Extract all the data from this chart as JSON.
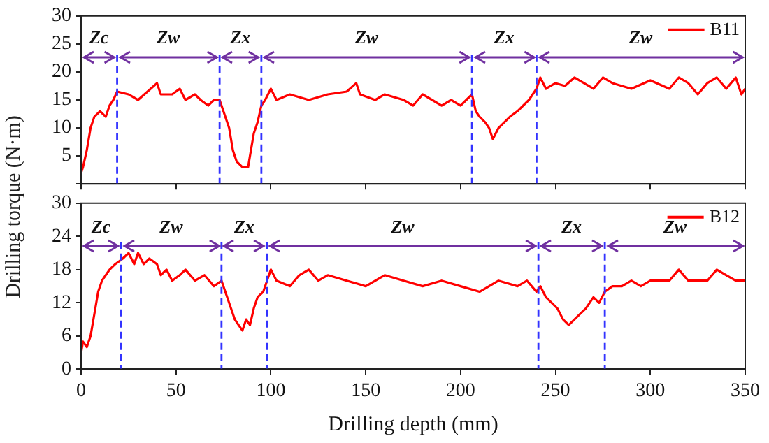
{
  "chart_data": [
    {
      "type": "line",
      "ylabel": "Drilling torque (N·m)",
      "xlim": [
        0,
        350
      ],
      "xticks": [
        0,
        50,
        100,
        150,
        200,
        250,
        300,
        350
      ],
      "ylim": [
        0,
        30
      ],
      "yticks": [
        {
          "value": 0,
          "label": null
        },
        5,
        10,
        15,
        20,
        25,
        30
      ],
      "tick_labels": "y",
      "grid": false,
      "legend": "top right",
      "line_style": "solid",
      "marker": "none",
      "series": [
        {
          "name": "B11",
          "color": "#ff0000",
          "x": [
            0,
            1,
            3,
            5,
            7,
            10,
            13,
            15,
            17,
            19,
            25,
            30,
            35,
            40,
            42,
            48,
            52,
            55,
            60,
            63,
            67,
            70,
            73,
            75,
            78,
            80,
            82,
            85,
            88,
            89,
            91,
            93,
            95,
            97,
            100,
            103,
            110,
            120,
            130,
            140,
            145,
            147,
            155,
            160,
            170,
            175,
            180,
            185,
            190,
            195,
            200,
            203,
            206,
            208,
            210,
            213,
            215,
            217,
            220,
            223,
            226,
            230,
            233,
            236,
            239,
            240,
            242,
            245,
            250,
            255,
            260,
            265,
            270,
            275,
            280,
            290,
            300,
            310,
            315,
            320,
            325,
            330,
            335,
            340,
            345,
            348,
            350
          ],
          "values": [
            2,
            3,
            6,
            10,
            12,
            13,
            12,
            14,
            15,
            16.5,
            16,
            15,
            16.5,
            18,
            16,
            16,
            17,
            15,
            16,
            15,
            14,
            15,
            15,
            13,
            10,
            6,
            4,
            3,
            3,
            5,
            9,
            11,
            14,
            15,
            17,
            15,
            16,
            15,
            16,
            16.5,
            18,
            16,
            15,
            16,
            15,
            14,
            16,
            15,
            14,
            15,
            14,
            15,
            16,
            13,
            12,
            11,
            10,
            8,
            10,
            11,
            12,
            13,
            14,
            15,
            16.5,
            17,
            19,
            17,
            18,
            17.5,
            19,
            18,
            17,
            19,
            18,
            17,
            18.5,
            17,
            19,
            18,
            16,
            18,
            19,
            17,
            19,
            16,
            17
          ]
        }
      ],
      "ref_lines": [
        {
          "axis": "x",
          "value": 19,
          "color": "#3333ff",
          "line_style": "dashed"
        },
        {
          "axis": "x",
          "value": 73,
          "color": "#3333ff",
          "line_style": "dashed"
        },
        {
          "axis": "x",
          "value": 95,
          "color": "#3333ff",
          "line_style": "dashed"
        },
        {
          "axis": "x",
          "value": 206,
          "color": "#3333ff",
          "line_style": "dashed"
        },
        {
          "axis": "x",
          "value": 240,
          "color": "#3333ff",
          "line_style": "dashed"
        }
      ],
      "annotations": [
        {
          "text": "Zc",
          "x": 19,
          "y": 22.7
        },
        {
          "text": "Zw",
          "x": 73,
          "y": 22.7
        },
        {
          "text": "Zx",
          "x": 95,
          "y": 22.7
        },
        "Zw",
        {
          "text": "Zx",
          "x": 240,
          "y": 22.7
        },
        "Zw"
      ]
    },
    {
      "type": "line",
      "xlabel": "Drilling depth (mm)",
      "xlim": [
        0,
        350
      ],
      "xticks": [
        0,
        50,
        100,
        150,
        200,
        250,
        300,
        350
      ],
      "ylim": [
        0,
        30
      ],
      "yticks": [
        0,
        6,
        12,
        18,
        24,
        30
      ],
      "grid": false,
      "legend": "top right",
      "line_style": "solid",
      "marker": "none",
      "series": [
        {
          "name": "B12",
          "color": "#ff0000",
          "x": [
            0,
            1,
            3,
            5,
            7,
            9,
            11,
            13,
            15,
            18,
            20,
            22,
            25,
            28,
            30,
            33,
            36,
            40,
            42,
            45,
            48,
            52,
            55,
            60,
            65,
            70,
            74,
            76,
            79,
            81,
            83,
            85,
            87,
            89,
            91,
            93,
            96,
            98,
            100,
            103,
            110,
            115,
            120,
            125,
            130,
            140,
            150,
            160,
            170,
            180,
            190,
            200,
            210,
            220,
            230,
            235,
            240,
            242,
            245,
            248,
            251,
            254,
            257,
            260,
            263,
            266,
            270,
            273,
            276,
            280,
            285,
            290,
            295,
            300,
            310,
            315,
            320,
            330,
            335,
            340,
            345,
            350
          ],
          "values": [
            3,
            5,
            4,
            6,
            10,
            14,
            16,
            17,
            18,
            19,
            19.5,
            20,
            21,
            19,
            21,
            19,
            20,
            19,
            17,
            18,
            16,
            17,
            18,
            16,
            17,
            15,
            16,
            14,
            11,
            9,
            8,
            7,
            9,
            8,
            11,
            13,
            14,
            16,
            18,
            16,
            15,
            17,
            18,
            16,
            17,
            16,
            15,
            17,
            16,
            15,
            16,
            15,
            14,
            16,
            15,
            16,
            14,
            15,
            13,
            12,
            11,
            9,
            8,
            9,
            10,
            11,
            13,
            12,
            14,
            15,
            15,
            16,
            15,
            16,
            16,
            18,
            16,
            16,
            18,
            17,
            16,
            16
          ]
        }
      ],
      "ref_lines": [
        {
          "axis": "x",
          "value": 21,
          "color": "#3333ff",
          "line_style": "dashed"
        },
        {
          "axis": "x",
          "value": 74,
          "color": "#3333ff",
          "line_style": "dashed"
        },
        {
          "axis": "x",
          "value": 98,
          "color": "#3333ff",
          "line_style": "dashed"
        },
        {
          "axis": "x",
          "value": 241,
          "color": "#3333ff",
          "line_style": "dashed"
        },
        {
          "axis": "x",
          "value": 276,
          "color": "#3333ff",
          "line_style": "dashed"
        }
      ],
      "annotations": [
        {
          "text": "Zc",
          "x": 21,
          "y": 22.2
        },
        {
          "text": "Zw",
          "x": 74,
          "y": 22.2
        },
        {
          "text": "Zx",
          "x": 98,
          "y": 22.2
        },
        "Zw",
        {
          "text": "Zx",
          "x": 276,
          "y": 22.2
        },
        "Zw"
      ]
    }
  ]
}
